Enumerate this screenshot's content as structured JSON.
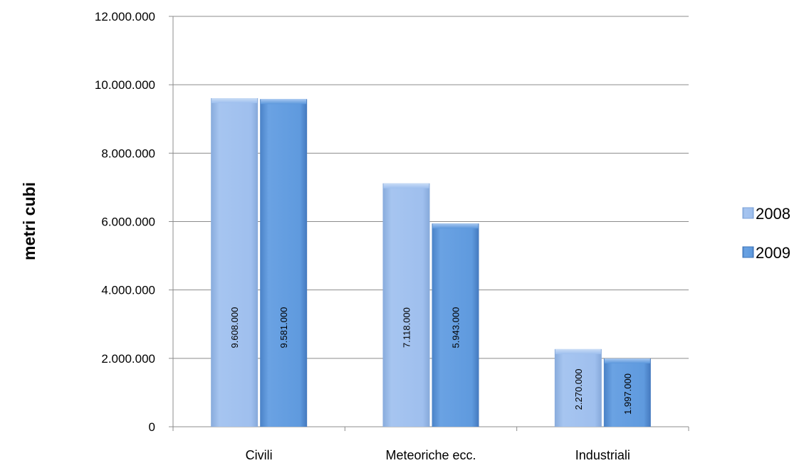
{
  "chart_data": {
    "type": "bar",
    "title": "",
    "xlabel": "",
    "ylabel": "metri cubi",
    "categories": [
      "Civili",
      "Meteoriche ecc.",
      "Industriali"
    ],
    "series": [
      {
        "name": "2008",
        "color": "#9dbfee",
        "values": [
          9608000,
          7118000,
          2270000
        ],
        "labels": [
          "9.608.000",
          "7.118.000",
          "2.270.000"
        ]
      },
      {
        "name": "2009",
        "color": "#5b97dc",
        "values": [
          9581000,
          5943000,
          1997000
        ],
        "labels": [
          "9.581.000",
          "5.943.000",
          "1.997.000"
        ]
      }
    ],
    "ylim": [
      0,
      12000000
    ],
    "yticks": [
      0,
      2000000,
      4000000,
      6000000,
      8000000,
      10000000,
      12000000
    ],
    "ytick_labels": [
      "0",
      "2.000.000",
      "4.000.000",
      "6.000.000",
      "8.000.000",
      "10.000.000",
      "12.000.000"
    ],
    "grid": true,
    "legend_position": "right"
  }
}
